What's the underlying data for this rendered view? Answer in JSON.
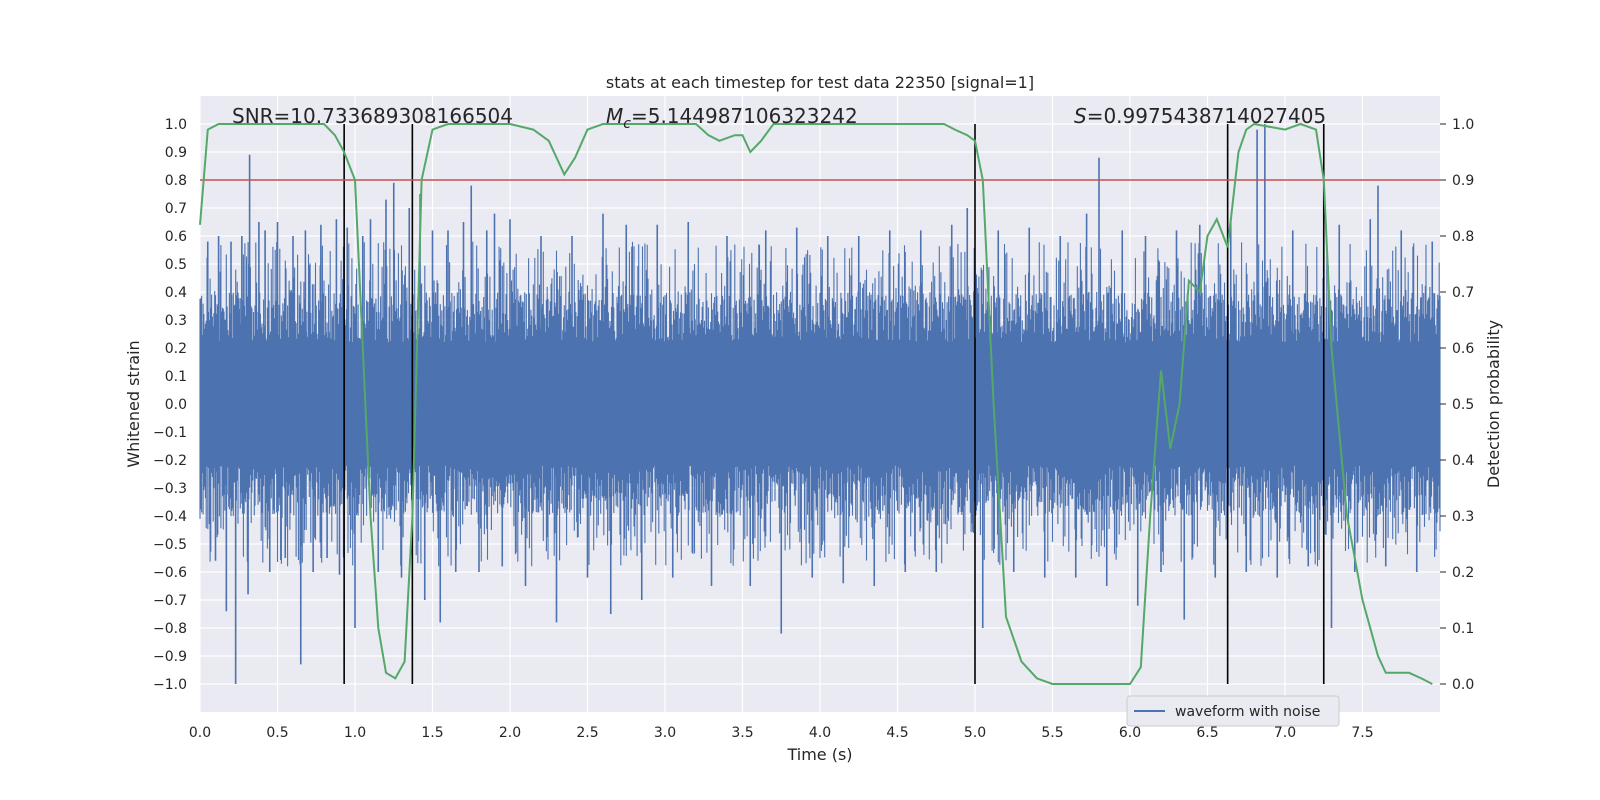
{
  "chart_data": {
    "type": "line",
    "title": "stats at each timestep for test data 22350 [signal=1]",
    "xlabel": "Time (s)",
    "ylabel_left": "Whitened strain",
    "ylabel_right": "Detection probability",
    "xlim": [
      0,
      8
    ],
    "ylim_left": [
      -1.1,
      1.1
    ],
    "ylim_right": [
      -0.05,
      1.05
    ],
    "x_ticks": [
      "0.0",
      "0.5",
      "1.0",
      "1.5",
      "2.0",
      "2.5",
      "3.0",
      "3.5",
      "4.0",
      "4.5",
      "5.0",
      "5.5",
      "6.0",
      "6.5",
      "7.0",
      "7.5"
    ],
    "x_tick_values": [
      0,
      0.5,
      1,
      1.5,
      2,
      2.5,
      3,
      3.5,
      4,
      4.5,
      5,
      5.5,
      6,
      6.5,
      7,
      7.5
    ],
    "y_ticks_left": [
      "1.0",
      "0.9",
      "0.8",
      "0.7",
      "0.6",
      "0.5",
      "0.4",
      "0.3",
      "0.2",
      "0.1",
      "0.0",
      "−0.1",
      "−0.2",
      "−0.3",
      "−0.4",
      "−0.5",
      "−0.6",
      "−0.7",
      "−0.8",
      "−0.9",
      "−1.0"
    ],
    "y_tick_values_left": [
      1.0,
      0.9,
      0.8,
      0.7,
      0.6,
      0.5,
      0.4,
      0.3,
      0.2,
      0.1,
      0.0,
      -0.1,
      -0.2,
      -0.3,
      -0.4,
      -0.5,
      -0.6,
      -0.7,
      -0.8,
      -0.9,
      -1.0
    ],
    "y_ticks_right": [
      "1.0",
      "0.9",
      "0.8",
      "0.7",
      "0.6",
      "0.5",
      "0.4",
      "0.3",
      "0.2",
      "0.1",
      "0.0"
    ],
    "y_tick_values_right": [
      1.0,
      0.9,
      0.8,
      0.7,
      0.6,
      0.5,
      0.4,
      0.3,
      0.2,
      0.1,
      0.0
    ],
    "annotations": {
      "snr": "SNR=10.733689308166504",
      "mc_symbol": "M",
      "mc_sub": "c",
      "mc_value": "=5.144987106323242",
      "s_symbol": "S",
      "s_value": "=0.9975438714027405"
    },
    "legend": {
      "label": "waveform with noise",
      "location": "lower-right"
    },
    "threshold_line": {
      "y_right": 0.9,
      "color": "#c44e52"
    },
    "vertical_lines": [
      0.93,
      1.37,
      5.0,
      6.63,
      7.25
    ],
    "series": [
      {
        "name": "waveform with noise",
        "color": "#4c72b0",
        "style": "dense noise, core amplitude ±0.4, spikes",
        "envelope": [
          0.4,
          -0.4
        ],
        "spikes": [
          [
            0.05,
            0.58
          ],
          [
            0.1,
            -0.56
          ],
          [
            0.12,
            0.6
          ],
          [
            0.17,
            -0.74
          ],
          [
            0.2,
            0.58
          ],
          [
            0.23,
            -1.0
          ],
          [
            0.27,
            0.6
          ],
          [
            0.31,
            -0.68
          ],
          [
            0.32,
            0.89
          ],
          [
            0.38,
            0.65
          ],
          [
            0.42,
            0.62
          ],
          [
            0.45,
            -0.6
          ],
          [
            0.5,
            0.65
          ],
          [
            0.55,
            -0.55
          ],
          [
            0.6,
            0.6
          ],
          [
            0.65,
            -0.93
          ],
          [
            0.68,
            0.62
          ],
          [
            0.73,
            -0.6
          ],
          [
            0.78,
            0.64
          ],
          [
            0.82,
            -0.55
          ],
          [
            0.88,
            0.66
          ],
          [
            0.9,
            -0.61
          ],
          [
            0.95,
            0.63
          ],
          [
            1.0,
            -0.8
          ],
          [
            1.05,
            0.6
          ],
          [
            1.1,
            0.66
          ],
          [
            1.15,
            -0.6
          ],
          [
            1.2,
            0.73
          ],
          [
            1.25,
            0.79
          ],
          [
            1.3,
            -0.62
          ],
          [
            1.35,
            0.7
          ],
          [
            1.42,
            0.75
          ],
          [
            1.45,
            -0.7
          ],
          [
            1.5,
            0.62
          ],
          [
            1.55,
            -0.78
          ],
          [
            1.6,
            0.62
          ],
          [
            1.65,
            -0.6
          ],
          [
            1.7,
            0.65
          ],
          [
            1.75,
            0.78
          ],
          [
            1.8,
            -0.6
          ],
          [
            1.85,
            0.62
          ],
          [
            1.9,
            0.68
          ],
          [
            1.95,
            -0.58
          ],
          [
            2.0,
            0.66
          ],
          [
            2.1,
            -0.65
          ],
          [
            2.2,
            0.6
          ],
          [
            2.3,
            -0.78
          ],
          [
            2.4,
            0.6
          ],
          [
            2.5,
            -0.62
          ],
          [
            2.6,
            0.68
          ],
          [
            2.65,
            -0.75
          ],
          [
            2.75,
            0.64
          ],
          [
            2.85,
            -0.7
          ],
          [
            2.95,
            0.64
          ],
          [
            3.05,
            -0.62
          ],
          [
            3.15,
            0.65
          ],
          [
            3.3,
            -0.65
          ],
          [
            3.4,
            0.6
          ],
          [
            3.55,
            -0.65
          ],
          [
            3.65,
            0.62
          ],
          [
            3.75,
            -0.82
          ],
          [
            3.85,
            0.63
          ],
          [
            3.95,
            -0.62
          ],
          [
            4.05,
            0.6
          ],
          [
            4.15,
            -0.64
          ],
          [
            4.25,
            0.6
          ],
          [
            4.35,
            -0.65
          ],
          [
            4.45,
            0.62
          ],
          [
            4.55,
            -0.6
          ],
          [
            4.65,
            0.62
          ],
          [
            4.75,
            -0.6
          ],
          [
            4.85,
            0.64
          ],
          [
            4.95,
            0.7
          ],
          [
            5.05,
            -0.8
          ],
          [
            5.15,
            0.62
          ],
          [
            5.25,
            -0.6
          ],
          [
            5.35,
            0.63
          ],
          [
            5.45,
            -0.62
          ],
          [
            5.55,
            0.6
          ],
          [
            5.65,
            -0.62
          ],
          [
            5.72,
            0.68
          ],
          [
            5.8,
            0.88
          ],
          [
            5.85,
            -0.65
          ],
          [
            5.95,
            0.62
          ],
          [
            6.05,
            -0.72
          ],
          [
            6.1,
            0.6
          ],
          [
            6.2,
            -0.6
          ],
          [
            6.3,
            0.62
          ],
          [
            6.35,
            -0.77
          ],
          [
            6.45,
            0.64
          ],
          [
            6.55,
            -0.62
          ],
          [
            6.65,
            0.66
          ],
          [
            6.75,
            -0.6
          ],
          [
            6.82,
            0.98
          ],
          [
            6.87,
            1.0
          ],
          [
            6.95,
            -0.62
          ],
          [
            7.05,
            0.62
          ],
          [
            7.15,
            -0.58
          ],
          [
            7.25,
            0.62
          ],
          [
            7.3,
            -0.8
          ],
          [
            7.35,
            0.64
          ],
          [
            7.45,
            -0.6
          ],
          [
            7.55,
            0.66
          ],
          [
            7.6,
            0.78
          ],
          [
            7.65,
            -0.58
          ],
          [
            7.75,
            0.62
          ],
          [
            7.85,
            -0.6
          ],
          [
            7.95,
            0.58
          ]
        ]
      },
      {
        "name": "detection probability",
        "color": "#55a868",
        "axis": "right",
        "points": [
          [
            0.0,
            0.82
          ],
          [
            0.05,
            0.99
          ],
          [
            0.12,
            1.0
          ],
          [
            0.8,
            1.0
          ],
          [
            0.87,
            0.98
          ],
          [
            0.93,
            0.95
          ],
          [
            1.0,
            0.9
          ],
          [
            1.05,
            0.6
          ],
          [
            1.1,
            0.3
          ],
          [
            1.15,
            0.1
          ],
          [
            1.2,
            0.02
          ],
          [
            1.26,
            0.01
          ],
          [
            1.32,
            0.04
          ],
          [
            1.37,
            0.3
          ],
          [
            1.43,
            0.9
          ],
          [
            1.5,
            0.99
          ],
          [
            1.6,
            1.0
          ],
          [
            2.0,
            1.0
          ],
          [
            2.15,
            0.99
          ],
          [
            2.25,
            0.97
          ],
          [
            2.3,
            0.94
          ],
          [
            2.35,
            0.91
          ],
          [
            2.42,
            0.94
          ],
          [
            2.5,
            0.99
          ],
          [
            2.6,
            1.0
          ],
          [
            3.2,
            1.0
          ],
          [
            3.28,
            0.98
          ],
          [
            3.35,
            0.97
          ],
          [
            3.45,
            0.98
          ],
          [
            3.5,
            0.98
          ],
          [
            3.55,
            0.95
          ],
          [
            3.62,
            0.97
          ],
          [
            3.7,
            1.0
          ],
          [
            4.8,
            1.0
          ],
          [
            4.87,
            0.99
          ],
          [
            4.95,
            0.98
          ],
          [
            5.0,
            0.97
          ],
          [
            5.05,
            0.9
          ],
          [
            5.12,
            0.5
          ],
          [
            5.2,
            0.12
          ],
          [
            5.3,
            0.04
          ],
          [
            5.4,
            0.01
          ],
          [
            5.5,
            0.0
          ],
          [
            6.0,
            0.0
          ],
          [
            6.07,
            0.03
          ],
          [
            6.13,
            0.3
          ],
          [
            6.2,
            0.56
          ],
          [
            6.26,
            0.42
          ],
          [
            6.32,
            0.5
          ],
          [
            6.38,
            0.72
          ],
          [
            6.45,
            0.7
          ],
          [
            6.5,
            0.8
          ],
          [
            6.56,
            0.83
          ],
          [
            6.63,
            0.78
          ],
          [
            6.7,
            0.95
          ],
          [
            6.75,
            0.99
          ],
          [
            6.8,
            1.0
          ],
          [
            7.0,
            0.99
          ],
          [
            7.1,
            1.0
          ],
          [
            7.2,
            0.99
          ],
          [
            7.25,
            0.9
          ],
          [
            7.3,
            0.6
          ],
          [
            7.4,
            0.3
          ],
          [
            7.5,
            0.15
          ],
          [
            7.6,
            0.05
          ],
          [
            7.65,
            0.02
          ],
          [
            7.72,
            0.02
          ],
          [
            7.8,
            0.02
          ],
          [
            7.88,
            0.01
          ],
          [
            7.95,
            0.0
          ]
        ]
      }
    ]
  }
}
